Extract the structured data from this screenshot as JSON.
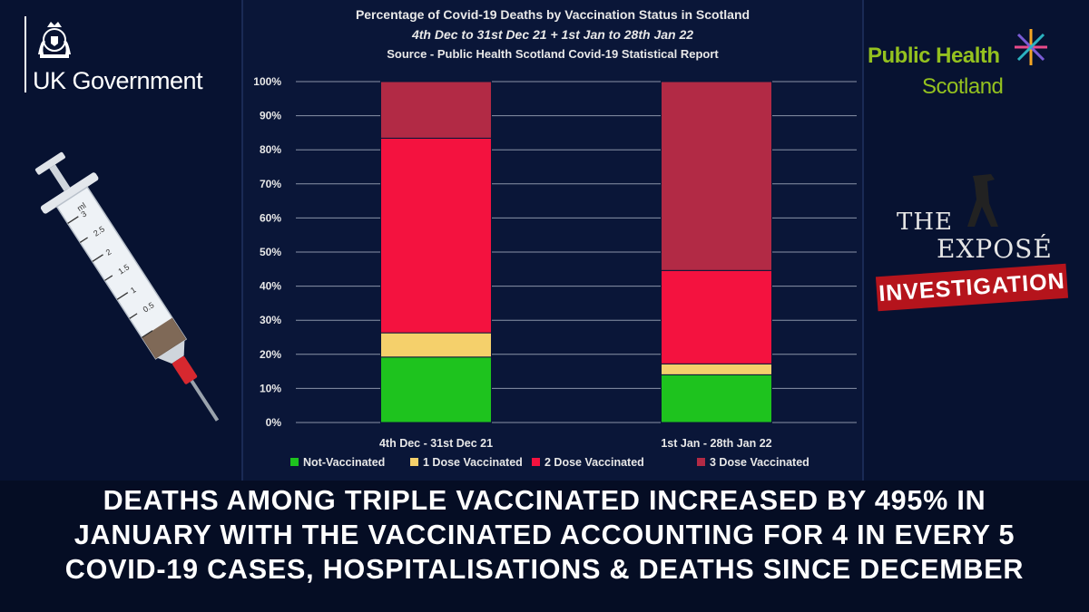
{
  "branding": {
    "uk_government": "UK Government",
    "phs_line1": "Public Health",
    "phs_line2": "Scotland",
    "expose_the": "THE",
    "expose_name": "EXPOSÉ",
    "expose_badge": "INVESTIGATION"
  },
  "syringe_labels": [
    "ml",
    "3",
    "2.5",
    "2",
    "1.5",
    "1",
    "0.5"
  ],
  "headline": [
    "DEATHS AMONG TRIPLE VACCINATED INCREASED BY 495% IN",
    "JANUARY WITH THE VACCINATED ACCOUNTING FOR 4 IN EVERY 5",
    "COVID-19 CASES, HOSPITALISATIONS & DEATHS SINCE DECEMBER"
  ],
  "colors": {
    "not_vaccinated": "#1ec31e",
    "one_dose": "#f5d06b",
    "two_dose": "#f4123f",
    "three_dose": "#b22a45",
    "gridline": "#8a93a8",
    "text": "#e8e8e8"
  },
  "chart_data": {
    "type": "bar",
    "stacked": true,
    "title": "Percentage of Covid-19 Deaths by Vaccination Status in Scotland",
    "subtitle": "4th Dec to 31st Dec 21 + 1st Jan to 28th Jan 22",
    "source": "Source - Public Health Scotland Covid-19 Statistical Report",
    "categories": [
      "4th Dec - 31st Dec 21",
      "1st Jan - 28th Jan 22"
    ],
    "series": [
      {
        "name": "Not-Vaccinated",
        "values": [
          19.2,
          14.0
        ]
      },
      {
        "name": "1 Dose Vaccinated",
        "values": [
          7.1,
          3.2
        ]
      },
      {
        "name": "2 Dose Vaccinated",
        "values": [
          57.1,
          27.4
        ]
      },
      {
        "name": "3 Dose Vaccinated",
        "values": [
          16.6,
          55.4
        ]
      }
    ],
    "ylim": [
      0,
      100
    ],
    "yticks": [
      "0%",
      "10%",
      "20%",
      "30%",
      "40%",
      "50%",
      "60%",
      "70%",
      "80%",
      "90%",
      "100%"
    ],
    "grid": true,
    "legend_position": "bottom"
  }
}
